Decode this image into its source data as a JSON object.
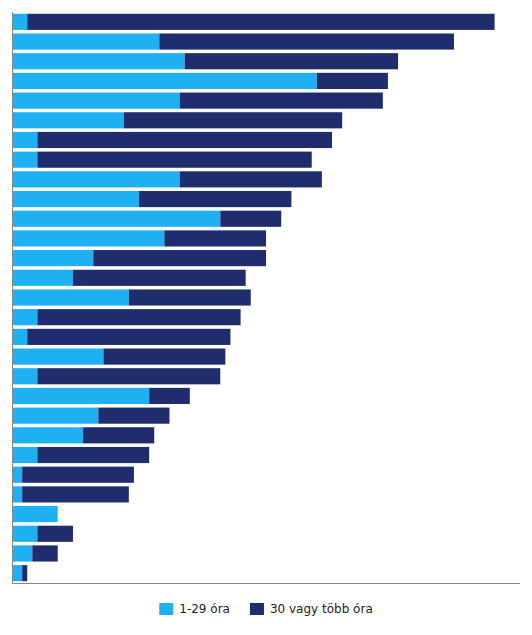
{
  "chart_data": {
    "type": "bar",
    "orientation": "horizontal",
    "stacked": true,
    "categories": [
      null,
      null,
      null,
      null,
      null,
      null,
      null,
      null,
      null,
      null,
      null,
      null,
      null,
      null,
      null,
      null,
      null,
      null,
      null,
      null,
      null,
      null,
      null,
      null,
      null,
      null,
      null,
      null,
      null
    ],
    "series": [
      {
        "name": "1-29 óra",
        "color": "#1EB0F0",
        "values": [
          3,
          29,
          34,
          60,
          33,
          22,
          5,
          5,
          33,
          25,
          41,
          30,
          16,
          12,
          23,
          5,
          3,
          18,
          5,
          27,
          17,
          14,
          5,
          2,
          2,
          9,
          5,
          4,
          2
        ]
      },
      {
        "name": "30 vagy több óra",
        "color": "#1F2D6E",
        "values": [
          92,
          58,
          42,
          14,
          40,
          43,
          58,
          54,
          28,
          30,
          12,
          20,
          34,
          34,
          24,
          40,
          40,
          24,
          36,
          8,
          14,
          14,
          22,
          22,
          21,
          0,
          7,
          5,
          1
        ]
      }
    ],
    "xlim": [
      0,
      100
    ],
    "tick_labels": false,
    "legend": "bottom"
  }
}
